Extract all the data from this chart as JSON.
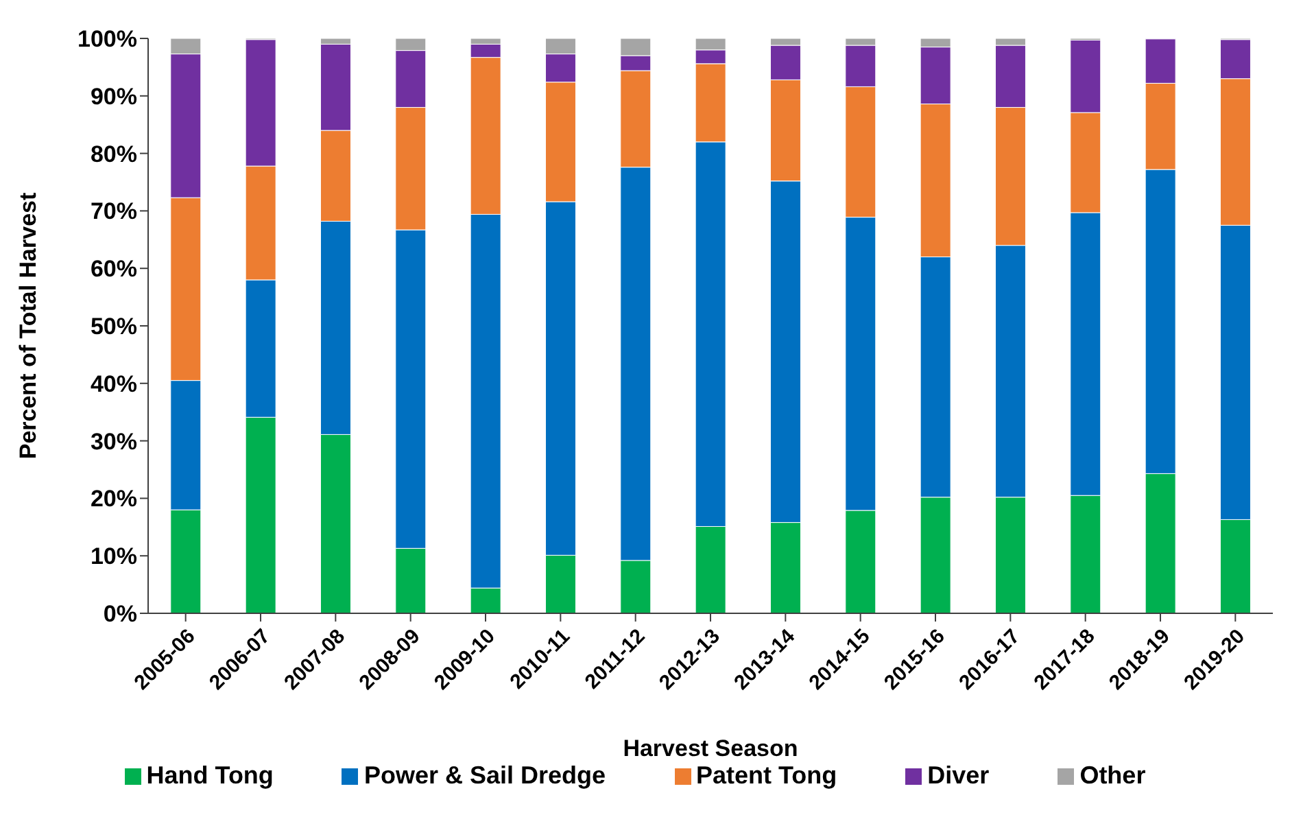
{
  "chart_data": {
    "type": "bar",
    "stacked": true,
    "xlabel": "Harvest Season",
    "ylabel": "Percent of Total Harvest",
    "categories": [
      "2005-06",
      "2006-07",
      "2007-08",
      "2008-09",
      "2009-10",
      "2010-11",
      "2011-12",
      "2012-13",
      "2013-14",
      "2014-15",
      "2015-16",
      "2016-17",
      "2017-18",
      "2018-19",
      "2019-20"
    ],
    "series": [
      {
        "name": "Hand Tong",
        "color": "#00b050",
        "values": [
          18,
          34.1,
          31.1,
          11.3,
          4.4,
          10.1,
          9.2,
          15.1,
          15.8,
          17.9,
          20.2,
          20.2,
          20.5,
          24.3,
          16.3
        ]
      },
      {
        "name": "Power & Sail Dredge",
        "color": "#0070c0",
        "values": [
          22.5,
          23.9,
          37.1,
          55.4,
          65,
          61.5,
          68.4,
          66.9,
          59.4,
          51,
          41.8,
          43.8,
          49.2,
          52.9,
          51.2
        ]
      },
      {
        "name": "Patent Tong",
        "color": "#ed7d31",
        "values": [
          31.8,
          19.8,
          15.8,
          21.3,
          27.3,
          20.8,
          16.8,
          13.6,
          17.6,
          22.7,
          26.6,
          24,
          17.4,
          15,
          25.5
        ]
      },
      {
        "name": "Diver",
        "color": "#7030a0",
        "values": [
          25,
          22,
          15,
          9.9,
          2.3,
          4.9,
          2.6,
          2.4,
          6,
          7.2,
          9.9,
          10.8,
          12.6,
          7.7,
          6.8
        ]
      },
      {
        "name": "Other",
        "color": "#a5a5a5",
        "values": [
          2.7,
          0.2,
          1,
          2.1,
          1,
          2.7,
          3,
          2,
          1.2,
          1.2,
          1.5,
          1.2,
          0.3,
          null,
          0.2
        ]
      }
    ],
    "ylim": [
      0,
      100
    ],
    "yticks": [
      {
        "value": 0,
        "label": "0%"
      },
      {
        "value": 10,
        "label": "10%"
      },
      {
        "value": 20,
        "label": "20%"
      },
      {
        "value": 30,
        "label": "30%"
      },
      {
        "value": 40,
        "label": "40%"
      },
      {
        "value": 50,
        "label": "50%"
      },
      {
        "value": 60,
        "label": "60%"
      },
      {
        "value": 70,
        "label": "70%"
      },
      {
        "value": 80,
        "label": "80%"
      },
      {
        "value": 90,
        "label": "90%"
      },
      {
        "value": 100,
        "label": "100%"
      }
    ],
    "grid": false,
    "legend": "bottom"
  }
}
